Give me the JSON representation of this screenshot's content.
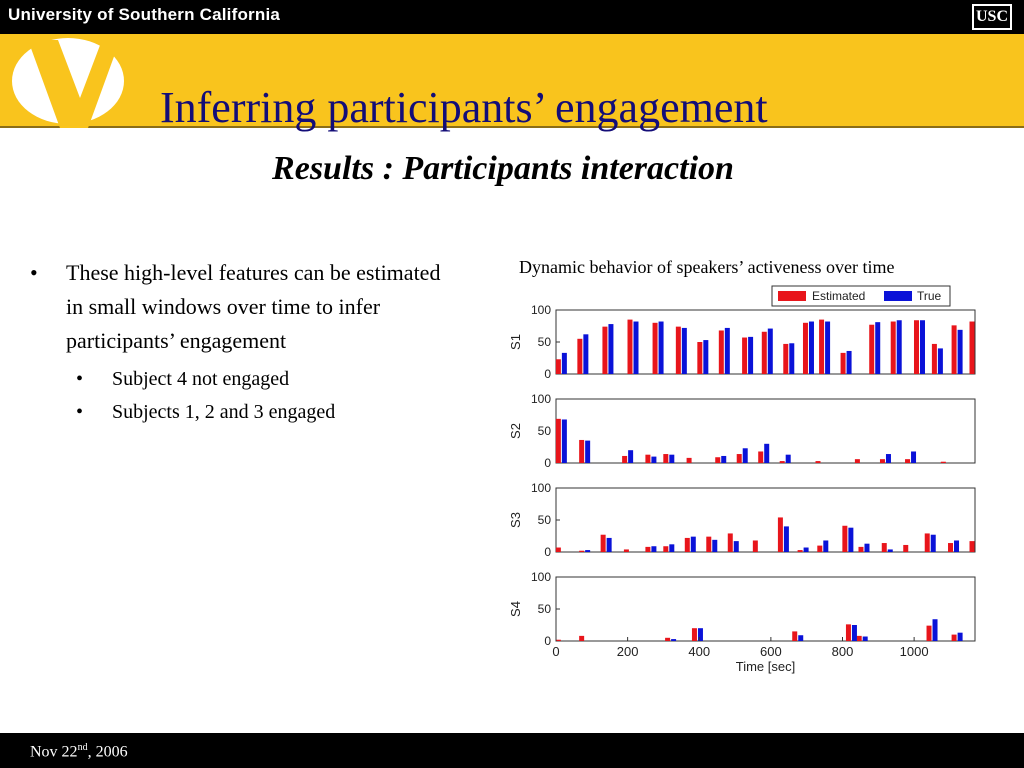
{
  "header": {
    "university": "University of Southern California",
    "logo_text": "USC",
    "band_color": "#f9c41d"
  },
  "slide": {
    "title": "Inferring participants’ engagement",
    "subtitle": "Results : Participants interaction",
    "bullets": [
      {
        "text": "These high-level features can be estimated in small windows over time to infer participants’ engagement",
        "children": [
          "Subject 4 not engaged",
          "Subjects 1, 2 and 3 engaged"
        ]
      }
    ],
    "bullet_glyph": "•"
  },
  "figure": {
    "caption": "Dynamic behavior of speakers’ activeness over time"
  },
  "chart_data": {
    "type": "bar",
    "xlabel": "Time [sec]",
    "xlim": [
      0,
      1170
    ],
    "xticks": [
      0,
      200,
      400,
      600,
      800,
      1000
    ],
    "ylim": [
      0,
      100
    ],
    "yticks": [
      0,
      50,
      100
    ],
    "grid": false,
    "legend_position": "top-right",
    "series_names": [
      "Estimated",
      "True"
    ],
    "colors": {
      "Estimated": "#e8151b",
      "True": "#0a12d8"
    },
    "x": [
      20,
      80,
      160,
      215,
      280,
      345,
      410,
      470,
      530,
      595,
      655,
      720,
      790,
      855,
      925,
      985,
      1050,
      1100,
      1160
    ],
    "panels": [
      {
        "ylabel": "S1",
        "estimated": [
          23,
          55,
          74,
          85,
          80,
          74,
          50,
          68,
          57,
          66,
          47,
          80,
          85,
          33,
          77,
          82,
          84,
          47,
          76,
          82
        ],
        "true": [
          33,
          62,
          78,
          82,
          82,
          72,
          53,
          72,
          58,
          71,
          48,
          82,
          82,
          36,
          81,
          84,
          84,
          40,
          69,
          null
        ]
      },
      {
        "ylabel": "S2",
        "estimated": [
          69,
          36,
          11,
          13,
          14,
          8,
          9,
          14,
          18,
          3,
          3,
          6,
          6,
          6,
          2
        ],
        "true": [
          68,
          35,
          20,
          10,
          13,
          null,
          11,
          23,
          30,
          13,
          null,
          null,
          14,
          18,
          null
        ]
      },
      {
        "ylabel": "S3",
        "estimated": [
          7,
          2,
          27,
          4,
          8,
          9,
          22,
          24,
          29,
          18,
          54,
          3,
          10,
          41,
          8,
          14,
          11,
          29,
          14,
          17
        ],
        "true": [
          null,
          3,
          22,
          null,
          9,
          12,
          24,
          19,
          17,
          null,
          40,
          7,
          18,
          38,
          13,
          4,
          null,
          27,
          18,
          null
        ]
      },
      {
        "ylabel": "S4",
        "estimated": [
          2,
          8,
          5,
          20,
          15,
          26,
          8,
          24,
          10
        ],
        "true": [
          null,
          null,
          3,
          20,
          9,
          25,
          7,
          34,
          13
        ]
      }
    ],
    "panel_x": [
      [
        15,
        75,
        145,
        215,
        285,
        350,
        410,
        470,
        535,
        590,
        650,
        705,
        750,
        810,
        890,
        950,
        1015,
        1065,
        1120,
        1170
      ],
      [
        15,
        80,
        200,
        265,
        315,
        380,
        460,
        520,
        580,
        640,
        740,
        850,
        920,
        990,
        1090
      ],
      [
        15,
        80,
        140,
        205,
        265,
        315,
        375,
        435,
        495,
        565,
        635,
        690,
        745,
        815,
        860,
        925,
        985,
        1045,
        1110,
        1170
      ],
      [
        15,
        80,
        320,
        395,
        675,
        825,
        855,
        1050,
        1120
      ]
    ]
  },
  "footer": {
    "date_main": "Nov 22",
    "date_sup": "nd",
    "date_tail": ", 2006"
  }
}
